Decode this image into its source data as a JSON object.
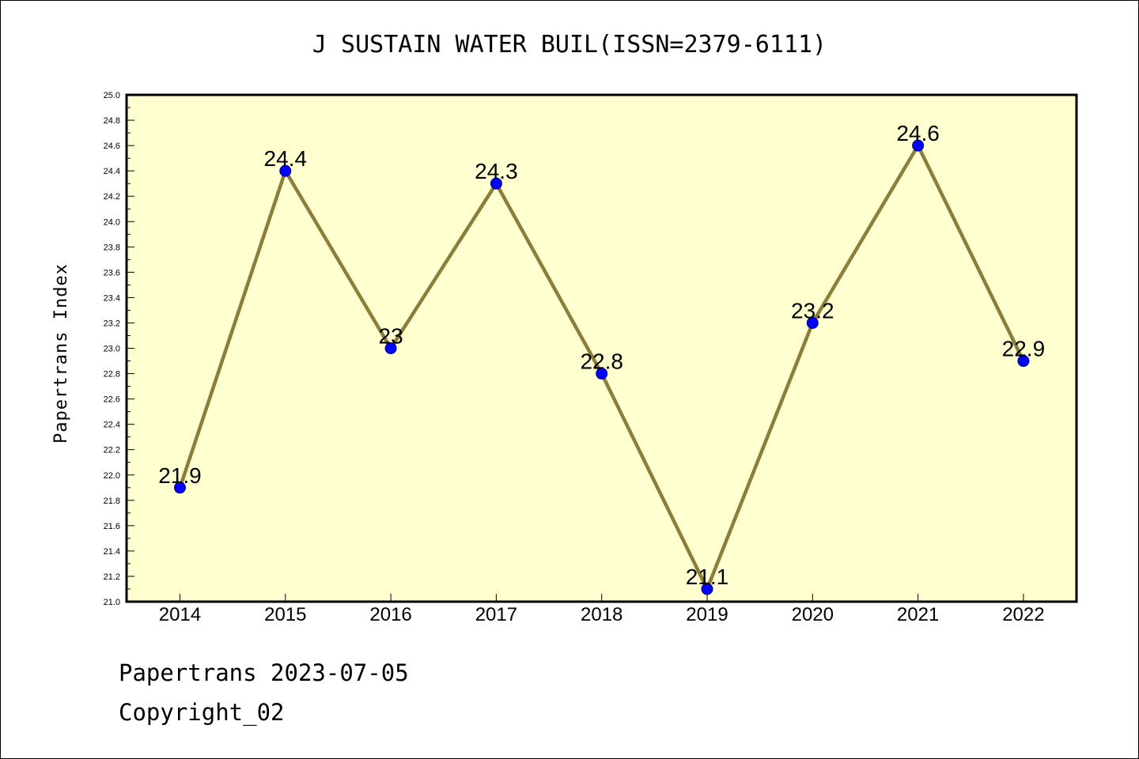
{
  "chart_data": {
    "type": "line",
    "title": "J SUSTAIN WATER BUIL(ISSN=2379-6111)",
    "ylabel": "Papertrans Index",
    "xlabel": "",
    "categories": [
      "2014",
      "2015",
      "2016",
      "2017",
      "2018",
      "2019",
      "2020",
      "2021",
      "2022"
    ],
    "values": [
      21.9,
      24.4,
      23.0,
      24.3,
      22.8,
      21.1,
      23.2,
      24.6,
      22.9
    ],
    "data_labels": [
      "21.9",
      "24.4",
      "23",
      "24.3",
      "22.8",
      "21.1",
      "23.2",
      "24.6",
      "22.9"
    ],
    "ylim": [
      21.0,
      25.0
    ],
    "yticks": [
      "21.0",
      "21.2",
      "21.4",
      "21.6",
      "21.8",
      "22.0",
      "22.2",
      "22.4",
      "22.6",
      "22.8",
      "23.0",
      "23.2",
      "23.4",
      "23.6",
      "23.8",
      "24.0",
      "24.2",
      "24.4",
      "24.6",
      "24.8",
      "25.0"
    ],
    "grid": false,
    "colors": {
      "plot_background": "#ffffd0",
      "line": "#8b7d3a",
      "marker": "#0000ff",
      "marker_edge": "#000080"
    }
  },
  "footer": {
    "date_text": "Papertrans 2023-07-05",
    "copyright_text": "Copyright_02"
  }
}
